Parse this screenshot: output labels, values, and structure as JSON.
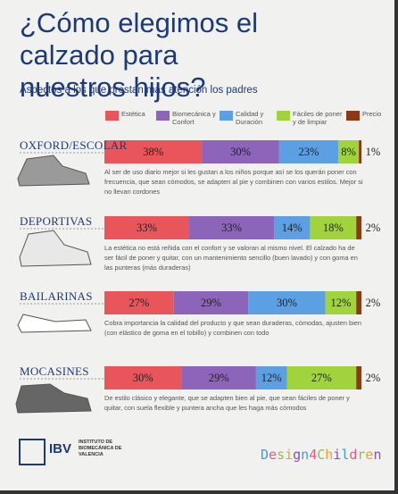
{
  "chart_data": {
    "type": "bar",
    "orientation": "horizontal",
    "stacked": true,
    "title": "¿Cómo elegimos el calzado para nuestros hijos?",
    "subtitle": "Aspectos a los que prestan más atención los padres",
    "categories": [
      "OXFORD/ESCOLAR",
      "DEPORTIVAS",
      "BAILARINAS",
      "MOCASINES"
    ],
    "xlim": [
      0,
      100
    ],
    "series": [
      {
        "name": "Estética",
        "color": "#e8555b",
        "values": [
          38,
          33,
          27,
          30
        ],
        "value_labels": [
          "38%",
          "33%",
          "27%",
          "30%"
        ]
      },
      {
        "name": "Biomecánica y Confort",
        "color": "#8c64b9",
        "values": [
          30,
          33,
          29,
          29
        ],
        "value_labels": [
          "30%",
          "33%",
          "29%",
          "29%"
        ]
      },
      {
        "name": "Calidad y Duración",
        "color": "#5c9fe3",
        "values": [
          23,
          14,
          30,
          12
        ],
        "value_labels": [
          "23%",
          "14%",
          "30%",
          "12%"
        ]
      },
      {
        "name": "Fáciles de poner y de limpiar",
        "color": "#a0d33c",
        "values": [
          8,
          18,
          12,
          27
        ],
        "value_labels": [
          "8%",
          "18%",
          "12%",
          "27%"
        ]
      },
      {
        "name": "Precio",
        "color": "#8a3a16",
        "values": [
          1,
          2,
          2,
          2
        ],
        "value_labels": [
          "1%",
          "2%",
          "2%",
          "2%"
        ]
      }
    ],
    "annotations": [
      "Al ser de uso diario mejor si les gustan a los niños porque así se los querán poner con frecuencia, que sean cómodos, se adapten al pie y combinen con varios estilos. Mejor si no llevan cordones",
      "La estética no está reñida con el confort y se valoran al mismo nivel. El calzado ha de ser fácil de poner y quitar, con un mantenimiento sencillo (buen lavado) y con goma en las punteras (más duraderas)",
      "Cobra importancia la calidad del producto y que sean duraderas, cómodas, ajusten bien (con elástico de goma en el tobillo) y combinen con todo",
      "De estilo clásico y elegante, que se adapten bien al pie, que sean fáciles de poner y quitar, con suela flexible y puntera ancha que les haga más cómodos"
    ]
  },
  "logos": {
    "ibv": "IBV",
    "institute": "INSTITUTO DE BIOMECÁNICA DE VALENCIA",
    "brand": "Design4Children"
  }
}
